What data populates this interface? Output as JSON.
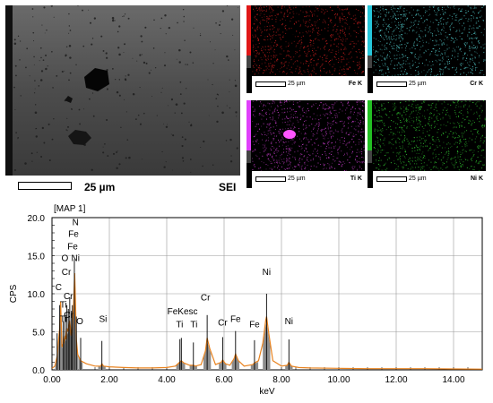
{
  "sem_panel": {
    "label": "SEI",
    "scale_text": "25 µm"
  },
  "maps": [
    {
      "element": "Fe K",
      "scale_text": "25 µm",
      "color": "#c81e1e",
      "side_color": "#e01818"
    },
    {
      "element": "Cr K",
      "scale_text": "25 µm",
      "color": "#55d0d0",
      "side_color": "#26c6da"
    },
    {
      "element": "Ti K",
      "scale_text": "25 µm",
      "color": "#c23cc6",
      "side_color": "#e040fb"
    },
    {
      "element": "Ni K",
      "scale_text": "25 µm",
      "color": "#30c030",
      "side_color": "#22c022"
    }
  ],
  "chart_data": {
    "type": "line",
    "title": "[MAP 1]",
    "xlabel": "keV",
    "ylabel": "CPS",
    "xlim": [
      0,
      15
    ],
    "ylim": [
      0,
      20
    ],
    "xticks": [
      "0.00",
      "2.00",
      "4.00",
      "6.00",
      "8.00",
      "10.00",
      "12.00",
      "14.00"
    ],
    "yticks": [
      "0.0",
      "5.0",
      "10.0",
      "15.0",
      "20.0"
    ],
    "grid": true,
    "line_color": "#e8821e",
    "fill_color": "#8c8c8c",
    "series": [
      {
        "x": [
          0.0,
          0.1,
          0.18,
          0.22,
          0.27,
          0.3,
          0.35,
          0.4,
          0.45,
          0.48,
          0.52,
          0.57,
          0.62,
          0.67,
          0.71,
          0.75,
          0.79,
          0.82,
          0.85,
          0.9,
          1.0,
          1.2,
          1.5,
          1.7,
          1.74,
          1.8,
          2.0,
          2.5,
          3.0,
          3.5,
          4.0,
          4.3,
          4.45,
          4.51,
          4.6,
          4.8,
          4.93,
          5.0,
          5.2,
          5.35,
          5.41,
          5.5,
          5.7,
          5.9,
          5.95,
          6.05,
          6.2,
          6.35,
          6.4,
          6.5,
          6.7,
          7.0,
          7.06,
          7.2,
          7.35,
          7.45,
          7.48,
          7.55,
          7.7,
          8.0,
          8.2,
          8.26,
          8.35,
          8.6,
          9.0,
          10.0,
          11.0,
          12.0,
          13.0,
          14.0,
          15.0
        ],
        "y": [
          0.2,
          0.5,
          1.8,
          3.5,
          5.5,
          9.0,
          3.0,
          3.5,
          4.5,
          4.0,
          5.5,
          5.0,
          6.5,
          4.5,
          5.5,
          8.0,
          12.7,
          9.0,
          4.0,
          2.0,
          1.2,
          0.8,
          0.5,
          0.5,
          0.8,
          0.5,
          0.4,
          0.3,
          0.25,
          0.25,
          0.3,
          0.5,
          1.0,
          1.2,
          0.9,
          0.6,
          0.6,
          0.5,
          0.7,
          2.5,
          4.2,
          2.8,
          0.7,
          1.0,
          1.3,
          0.8,
          0.6,
          1.5,
          2.1,
          1.2,
          0.5,
          0.7,
          0.9,
          1.2,
          3.5,
          6.5,
          7.0,
          5.0,
          1.2,
          0.5,
          0.6,
          1.0,
          0.5,
          0.3,
          0.25,
          0.2,
          0.15,
          0.15,
          0.15,
          0.12,
          0.1
        ]
      }
    ],
    "peak_labels": [
      {
        "text": "N",
        "x": 0.82,
        "y": 19.0
      },
      {
        "text": "Fe",
        "x": 0.75,
        "y": 17.5
      },
      {
        "text": "Fe",
        "x": 0.72,
        "y": 15.8
      },
      {
        "text": "O",
        "x": 0.45,
        "y": 14.3
      },
      {
        "text": "Ni",
        "x": 0.82,
        "y": 14.3
      },
      {
        "text": "Cr",
        "x": 0.5,
        "y": 12.5
      },
      {
        "text": "C",
        "x": 0.23,
        "y": 10.5
      },
      {
        "text": "Cr",
        "x": 0.57,
        "y": 9.3
      },
      {
        "text": "Ti",
        "x": 0.4,
        "y": 8.2
      },
      {
        "text": "Cr",
        "x": 0.58,
        "y": 6.8
      },
      {
        "text": "Ti",
        "x": 0.4,
        "y": 6.3
      },
      {
        "text": "O",
        "x": 0.97,
        "y": 6.0
      },
      {
        "text": "Si",
        "x": 1.78,
        "y": 6.3
      },
      {
        "text": "FeKesc",
        "x": 4.55,
        "y": 7.3
      },
      {
        "text": "Ti",
        "x": 4.45,
        "y": 5.6
      },
      {
        "text": "Ti",
        "x": 4.95,
        "y": 5.6
      },
      {
        "text": "Cr",
        "x": 5.35,
        "y": 9.1
      },
      {
        "text": "Cr",
        "x": 5.95,
        "y": 5.8
      },
      {
        "text": "Fe",
        "x": 6.4,
        "y": 6.3
      },
      {
        "text": "Fe",
        "x": 7.06,
        "y": 5.6
      },
      {
        "text": "Ni",
        "x": 7.48,
        "y": 12.5
      },
      {
        "text": "Ni",
        "x": 8.26,
        "y": 6.0
      }
    ],
    "markers": [
      0.18,
      0.27,
      0.39,
      0.45,
      0.52,
      0.57,
      0.62,
      0.68,
      0.71,
      0.78,
      0.85,
      1.0,
      1.74,
      4.46,
      4.51,
      4.93,
      5.41,
      5.95,
      6.4,
      7.06,
      7.48,
      8.26
    ]
  }
}
